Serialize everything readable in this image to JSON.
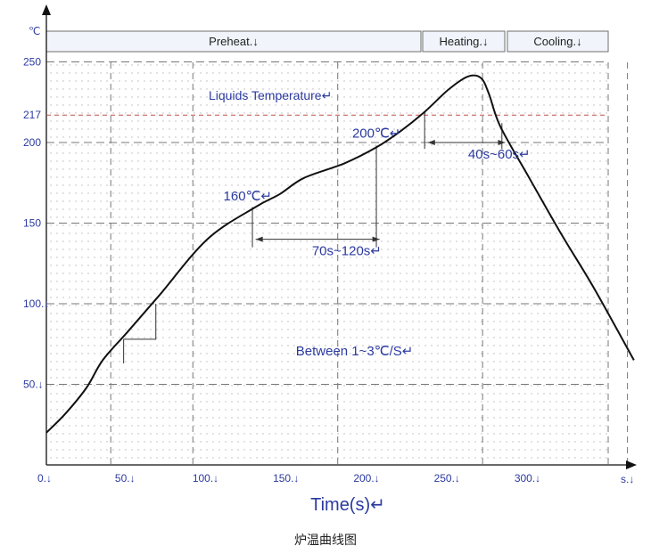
{
  "chart_data": {
    "type": "line",
    "title": "",
    "xlabel": "Time(s)↵",
    "ylabel": "",
    "y_unit_label": "℃",
    "x_unit_label": "s.↓",
    "xlim": [
      0,
      365
    ],
    "ylim": [
      0,
      250
    ],
    "x_ticks": [
      {
        "value": 0,
        "label": "0.↓"
      },
      {
        "value": 50,
        "label": "50.↓"
      },
      {
        "value": 100,
        "label": "100.↓"
      },
      {
        "value": 150,
        "label": "150.↓"
      },
      {
        "value": 200,
        "label": "200.↓"
      },
      {
        "value": 250,
        "label": "250.↓"
      },
      {
        "value": 300,
        "label": "300.↓"
      }
    ],
    "y_ticks": [
      {
        "value": 50,
        "label": "50.↓"
      },
      {
        "value": 100,
        "label": "100.↓"
      },
      {
        "value": 150,
        "label": "150"
      },
      {
        "value": 200,
        "label": "200"
      },
      {
        "value": 217,
        "label": "217"
      },
      {
        "value": 250,
        "label": "250"
      }
    ],
    "grid": true,
    "phases": [
      {
        "label": "Preheat.↓",
        "start": 0,
        "end": 235
      },
      {
        "label": "Heating.↓",
        "start": 235,
        "end": 285
      },
      {
        "label": "Cooling.↓",
        "start": 285,
        "end": 350
      }
    ],
    "reference_line": {
      "value": 217,
      "label": "Liquids Temperature↵",
      "color": "#c0504d"
    },
    "series": [
      {
        "color": "#111111",
        "x": [
          0,
          12,
          25,
          35,
          50,
          70,
          100,
          130,
          145,
          160,
          185,
          205,
          220,
          235,
          250,
          262,
          270,
          275,
          282,
          300,
          320,
          340,
          365
        ],
        "y": [
          20,
          32,
          48,
          65,
          82,
          105,
          140,
          160,
          168,
          178,
          187,
          197,
          207,
          219,
          233,
          241,
          240,
          230,
          210,
          178,
          143,
          110,
          65
        ]
      }
    ],
    "annotations": [
      {
        "text": "160℃↵",
        "x": 110,
        "y": 164
      },
      {
        "text": "200℃↵",
        "x": 190,
        "y": 203
      },
      {
        "text": "70s~120s↵",
        "x": 165,
        "y": 130
      },
      {
        "text": "40s~60s↵",
        "x": 262,
        "y": 190
      },
      {
        "text": "Between 1~3℃/S↵",
        "x": 155,
        "y": 68
      }
    ],
    "spans": [
      {
        "start": 130,
        "end": 207,
        "y": 140
      },
      {
        "start": 237,
        "end": 285,
        "y": 200
      }
    ]
  },
  "caption": "炉温曲线图"
}
